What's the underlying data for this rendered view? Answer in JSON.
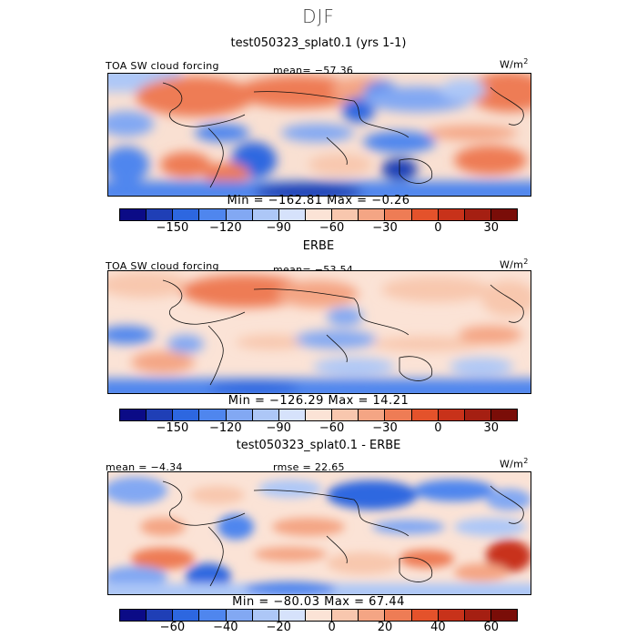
{
  "figure": {
    "title": "DJF"
  },
  "panels": [
    {
      "title": "test050323_splat0.1 (yrs 1-1)",
      "left_label": "TOA SW cloud forcing",
      "center_label": "mean=  −57.36",
      "units_base": "W/m",
      "units_exp": "2",
      "minmax": "Min = −162.81 Max =   −0.26"
    },
    {
      "title": "ERBE",
      "left_label": "TOA SW cloud forcing",
      "center_label": "mean=  −53.54",
      "units_base": "W/m",
      "units_exp": "2",
      "minmax": "Min = −126.29 Max =   14.21"
    },
    {
      "title": "test050323_splat0.1 - ERBE",
      "left_label": "mean =   −4.34",
      "center_label": "rmse =   22.65",
      "units_base": "W/m",
      "units_exp": "2",
      "minmax": "Min = −80.03 Max =   67.44"
    }
  ],
  "colorbars": [
    {
      "ticks": [
        "−150",
        "−120",
        "−90",
        "−60",
        "−30",
        "0",
        "30"
      ],
      "tick_positions": [
        2,
        4,
        6,
        8,
        10,
        12,
        14
      ]
    },
    {
      "ticks": [
        "−150",
        "−120",
        "−90",
        "−60",
        "−30",
        "0",
        "30"
      ],
      "tick_positions": [
        2,
        4,
        6,
        8,
        10,
        12,
        14
      ]
    },
    {
      "ticks": [
        "−60",
        "−40",
        "−20",
        "0",
        "20",
        "40",
        "60"
      ],
      "tick_positions": [
        2,
        4,
        6,
        8,
        10,
        12,
        14
      ]
    }
  ],
  "colors": {
    "palette": [
      "#0b0b86",
      "#1f3fb6",
      "#2d67e0",
      "#4f86ee",
      "#82a8f3",
      "#adc7f7",
      "#d6e2fb",
      "#fbe3d6",
      "#f8c7ae",
      "#f4a584",
      "#ee7c55",
      "#e4522b",
      "#c8321a",
      "#a51f12",
      "#7a0d08"
    ]
  },
  "chart_data": [
    {
      "type": "heatmap",
      "title": "test050323_splat0.1 (yrs 1-1)",
      "subtitle": "TOA SW cloud forcing",
      "units": "W/m2",
      "mean": -57.36,
      "min": -162.81,
      "max": -0.26,
      "colorbar_ticks": [
        -150,
        -120,
        -90,
        -60,
        -30,
        0,
        30
      ]
    },
    {
      "type": "heatmap",
      "title": "ERBE",
      "subtitle": "TOA SW cloud forcing",
      "units": "W/m2",
      "mean": -53.54,
      "min": -126.29,
      "max": 14.21,
      "colorbar_ticks": [
        -150,
        -120,
        -90,
        -60,
        -30,
        0,
        30
      ]
    },
    {
      "type": "heatmap",
      "title": "test050323_splat0.1 - ERBE",
      "units": "W/m2",
      "mean": -4.34,
      "rmse": 22.65,
      "min": -80.03,
      "max": 67.44,
      "colorbar_ticks": [
        -60,
        -40,
        -20,
        0,
        20,
        40,
        60
      ]
    }
  ]
}
